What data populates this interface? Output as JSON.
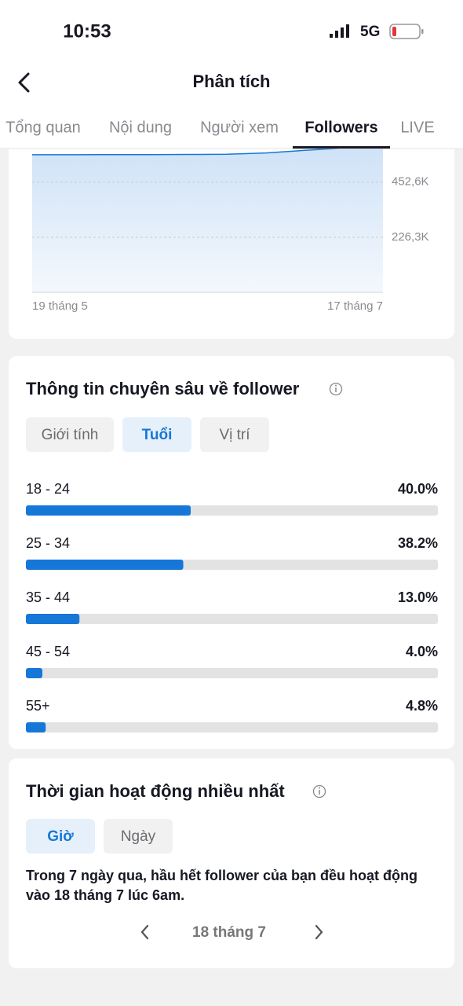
{
  "status_bar": {
    "time": "10:53",
    "network": "5G"
  },
  "header": {
    "title": "Phân tích"
  },
  "tabs": {
    "items": [
      "Tổng quan",
      "Nội dung",
      "Người xem",
      "Followers",
      "LIVE"
    ],
    "active": 3
  },
  "follower_insights": {
    "filters": [
      "Giới tính",
      "Tuổi",
      "Vị trí"
    ],
    "active": 1
  },
  "activity": {
    "title": "Thời gian hoạt động nhiều nhất",
    "filters": [
      "Giờ",
      "Ngày"
    ],
    "active": 0,
    "summary": "Trong 7 ngày qua, hầu hết follower của bạn đều hoạt động vào 18 tháng 7 lúc 6am.",
    "date": "18 tháng 7"
  },
  "chart_data": [
    {
      "type": "area",
      "categories": [
        "19 tháng 5",
        null,
        null,
        null,
        null,
        null,
        null,
        null,
        null,
        "17 tháng 7"
      ],
      "values": [
        565000,
        565000,
        565500,
        565500,
        566000,
        567000,
        572000,
        583000,
        592000,
        598000
      ],
      "color": "#1677d9",
      "ylim": [
        0,
        600000
      ],
      "yticks": [
        {
          "value": 226300,
          "label": "226,3K"
        },
        {
          "value": 452600,
          "label": "452,6K"
        }
      ],
      "grid": true
    },
    {
      "type": "hbar",
      "title": "Thông tin chuyên sâu về follower",
      "categories": [
        "18 - 24",
        "25 - 34",
        "35 - 44",
        "45 - 54",
        "55+"
      ],
      "values": [
        40.0,
        38.2,
        13.0,
        4.0,
        4.8
      ],
      "value_labels": [
        "40.0%",
        "38.2%",
        "13.0%",
        "4.0%",
        "4.8%"
      ],
      "color": "#1677d9",
      "xlim": [
        0,
        100
      ]
    }
  ]
}
